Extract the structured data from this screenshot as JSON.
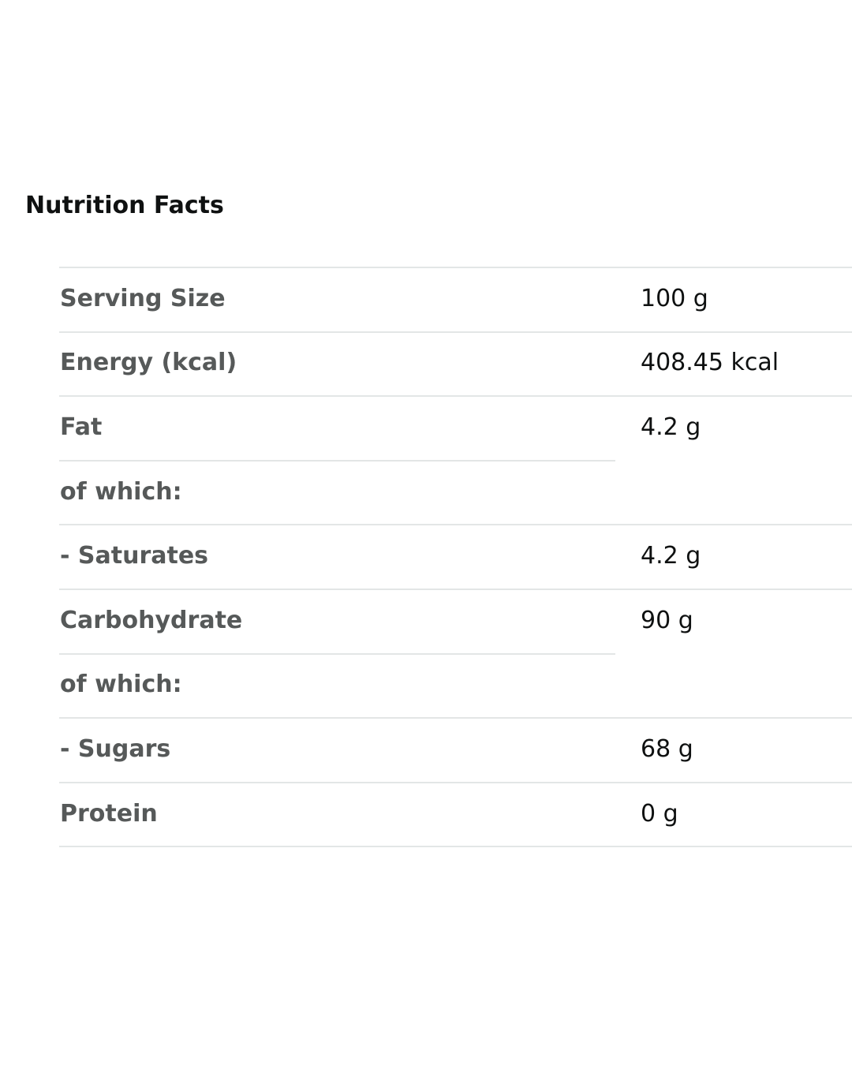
{
  "header": {
    "title": "Nutrition Facts"
  },
  "table": {
    "rows": [
      {
        "label": "Serving Size",
        "value": "100 g"
      },
      {
        "label": "Energy (kcal)",
        "value": "408.45 kcal"
      },
      {
        "label": "Fat",
        "value": "4.2 g"
      },
      {
        "label": "of which:"
      },
      {
        "label": "- Saturates",
        "value": "4.2 g"
      },
      {
        "label": "Carbohydrate",
        "value": "90 g"
      },
      {
        "label": "of which:"
      },
      {
        "label": "- Sugars",
        "value": "68 g"
      },
      {
        "label": "Protein",
        "value": "0 g"
      }
    ]
  }
}
